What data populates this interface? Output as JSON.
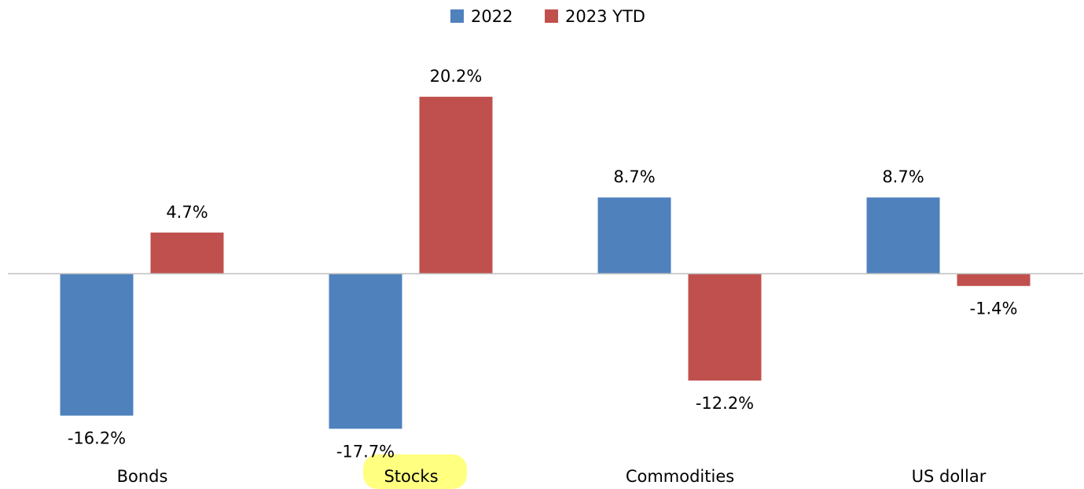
{
  "chart_data": {
    "type": "bar",
    "categories": [
      "Bonds",
      "Stocks",
      "Commodities",
      "US dollar"
    ],
    "series": [
      {
        "name": "2022",
        "color": "#4f81bd",
        "values": [
          -16.2,
          -17.7,
          8.7,
          8.7
        ],
        "value_labels": [
          "-16.2%",
          "-17.7%",
          "8.7%",
          "8.7%"
        ]
      },
      {
        "name": "2023 YTD",
        "color": "#c0504d",
        "values": [
          4.7,
          20.2,
          -12.2,
          -1.4
        ],
        "value_labels": [
          "4.7%",
          "20.2%",
          "-12.2%",
          "-1.4%"
        ]
      }
    ],
    "ylim": [
      -20,
      22
    ],
    "legend": "top"
  }
}
